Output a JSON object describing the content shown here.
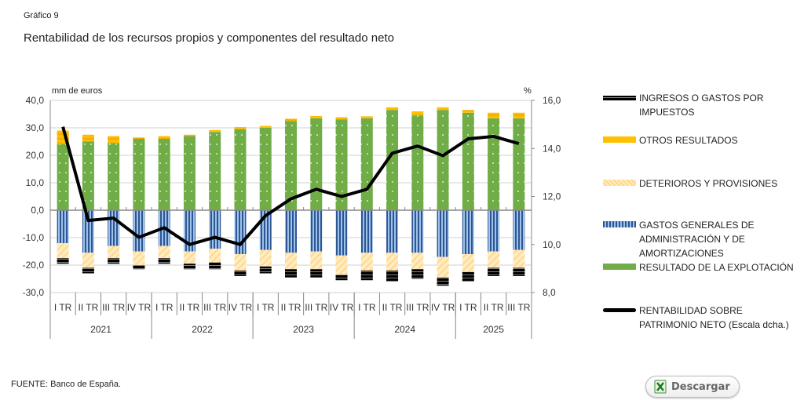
{
  "header": {
    "subtitle": "Gráfico 9",
    "title": "Rentabilidad de los recursos propios y componentes del resultado neto"
  },
  "footer": {
    "source": "FUENTE: Banco de España.",
    "download_label": "Descargar",
    "download_icon": "excel-download-icon"
  },
  "colors": {
    "resultado": "#70ad47",
    "otros": "#ffc000",
    "gastos": "#4472c4",
    "deterioros": "#ffe0a0",
    "impuestos": "#000000",
    "rentabilidad": "#000000"
  },
  "chart_data": {
    "type": "bar",
    "title": "Rentabilidad de los recursos propios y componentes del resultado neto",
    "ylabel_left": "mm de euros",
    "ylabel_right": "%",
    "ylim_left": [
      -30,
      40
    ],
    "ylim_right": [
      8,
      16
    ],
    "yticks_left": [
      "40,0",
      "30,0",
      "20,0",
      "10,0",
      "0,0",
      "-10,0",
      "-20,0",
      "-30,0"
    ],
    "yticks_right": [
      "16,0",
      "14,0",
      "12,0",
      "10,0",
      "8,0"
    ],
    "grid": true,
    "legend_position": "right",
    "categories": [
      "I TR",
      "II TR",
      "III TR",
      "IV TR",
      "I TR",
      "II TR",
      "III TR",
      "IV TR",
      "I TR",
      "II TR",
      "III TR",
      "IV TR",
      "I TR",
      "II TR",
      "III TR",
      "IV TR",
      "I TR",
      "II TR",
      "III TR"
    ],
    "years": [
      {
        "label": "2021",
        "count": 4
      },
      {
        "label": "2022",
        "count": 4
      },
      {
        "label": "2023",
        "count": 4
      },
      {
        "label": "2024",
        "count": 4
      },
      {
        "label": "2025",
        "count": 3
      }
    ],
    "series": [
      {
        "name": "INGRESOS O GASTOS POR IMPUESTOS",
        "kind": "bar",
        "values": [
          -2,
          -2,
          -2,
          -1.5,
          -2,
          -2,
          -2.5,
          -2,
          -2.5,
          -3,
          -3,
          -2,
          -3.5,
          -4,
          -3.5,
          -3,
          -3.5,
          -3,
          -3
        ]
      },
      {
        "name": "OTROS RESULTADOS",
        "kind": "bar",
        "values": [
          5,
          2.5,
          2.5,
          0.5,
          1,
          0.5,
          0.7,
          0.8,
          0.7,
          0.8,
          0.8,
          0.9,
          0.7,
          1,
          1.5,
          1,
          1,
          2,
          2
        ]
      },
      {
        "name": "DETERIOROS Y PROVISIONES",
        "kind": "bar",
        "values": [
          -5.5,
          -5.5,
          -4.5,
          -5,
          -4.5,
          -4.5,
          -5,
          -6,
          -6,
          -6,
          -6.5,
          -7,
          -6.5,
          -6.5,
          -6,
          -7.5,
          -6.5,
          -6,
          -6.5
        ]
      },
      {
        "name": "GASTOS GENERALES DE ADMINISTRACIÓN Y DE AMORTIZACIONES",
        "kind": "bar",
        "values": [
          -12,
          -15.5,
          -13,
          -15,
          -13,
          -15,
          -14,
          -16,
          -14.5,
          -15.5,
          -15,
          -16.5,
          -15.5,
          -15.5,
          -15.5,
          -17,
          -16,
          -15,
          -14.5
        ]
      },
      {
        "name": "RESULTADO DE LA EXPLOTACIÓN",
        "kind": "bar",
        "values": [
          24,
          25,
          24.5,
          26,
          26,
          27,
          28.5,
          29.5,
          30,
          32.5,
          33.5,
          33,
          33.5,
          36.5,
          34.5,
          36.5,
          35.5,
          33.5,
          33.5
        ]
      },
      {
        "name": "RENTABILIDAD SOBRE PATRIMONIO NETO (Escala dcha.)",
        "kind": "line",
        "axis": "right",
        "values": [
          14.9,
          11.0,
          11.1,
          10.3,
          10.7,
          10.0,
          10.3,
          10.0,
          11.2,
          11.9,
          12.3,
          12.0,
          12.3,
          13.8,
          14.1,
          13.7,
          14.4,
          14.5,
          14.2
        ]
      }
    ]
  }
}
